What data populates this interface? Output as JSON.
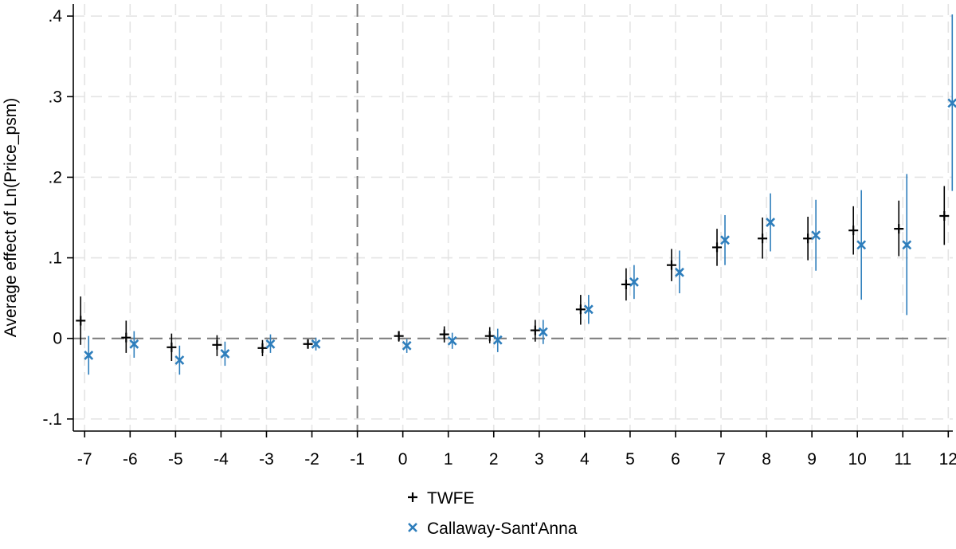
{
  "chart_data": {
    "type": "scatter",
    "title": "",
    "xlabel": "",
    "ylabel": "Average effect of Ln(Price_psm)",
    "x_ticks": [
      -7,
      -6,
      -5,
      -4,
      -3,
      -2,
      -1,
      0,
      1,
      2,
      3,
      4,
      5,
      6,
      7,
      8,
      9,
      10,
      11,
      12
    ],
    "y_ticks": [
      -0.1,
      0,
      0.1,
      0.2,
      0.3,
      0.4
    ],
    "y_tick_labels": [
      "-.1",
      "0",
      ".1",
      ".2",
      ".3",
      ".4"
    ],
    "xlim": [
      -7.25,
      12.1
    ],
    "ylim": [
      -0.115,
      0.415
    ],
    "grid": true,
    "reference_lines": {
      "x": -1,
      "y": 0
    },
    "legend_position": "bottom",
    "series": [
      {
        "name": "TWFE",
        "marker": "plus",
        "color": "#000000",
        "x": [
          -7,
          -6,
          -5,
          -4,
          -3,
          -2,
          0,
          1,
          2,
          3,
          4,
          5,
          6,
          7,
          8,
          9,
          10,
          11,
          12
        ],
        "y": [
          0.022,
          0.001,
          -0.011,
          -0.008,
          -0.012,
          -0.007,
          0.003,
          0.005,
          0.003,
          0.01,
          0.036,
          0.067,
          0.091,
          0.113,
          0.124,
          0.124,
          0.134,
          0.136,
          0.152
        ],
        "ci_low": [
          -0.008,
          -0.018,
          -0.028,
          -0.022,
          -0.022,
          -0.012,
          -0.004,
          -0.005,
          -0.006,
          -0.004,
          0.017,
          0.047,
          0.071,
          0.09,
          0.099,
          0.097,
          0.104,
          0.102,
          0.116
        ],
        "ci_high": [
          0.052,
          0.022,
          0.006,
          0.004,
          -0.002,
          -0.002,
          0.009,
          0.015,
          0.014,
          0.023,
          0.054,
          0.087,
          0.111,
          0.136,
          0.15,
          0.151,
          0.164,
          0.171,
          0.189
        ]
      },
      {
        "name": "Callaway-Sant'Anna",
        "marker": "x",
        "color": "#2e7ebc",
        "x": [
          -7,
          -6,
          -5,
          -4,
          -3,
          -2,
          0,
          1,
          2,
          3,
          4,
          5,
          6,
          7,
          8,
          9,
          10,
          11,
          12
        ],
        "y": [
          -0.021,
          -0.007,
          -0.027,
          -0.019,
          -0.007,
          -0.007,
          -0.009,
          -0.003,
          -0.002,
          0.008,
          0.036,
          0.07,
          0.082,
          0.122,
          0.144,
          0.128,
          0.116,
          0.116,
          0.292
        ],
        "ci_low": [
          -0.045,
          -0.024,
          -0.045,
          -0.034,
          -0.018,
          -0.015,
          -0.018,
          -0.013,
          -0.017,
          -0.007,
          0.018,
          0.049,
          0.056,
          0.091,
          0.108,
          0.084,
          0.048,
          0.029,
          0.183
        ],
        "ci_high": [
          0.003,
          0.009,
          -0.009,
          -0.004,
          0.005,
          0.001,
          -0.001,
          0.007,
          0.012,
          0.023,
          0.054,
          0.091,
          0.109,
          0.153,
          0.18,
          0.172,
          0.184,
          0.204,
          0.402
        ]
      }
    ]
  }
}
